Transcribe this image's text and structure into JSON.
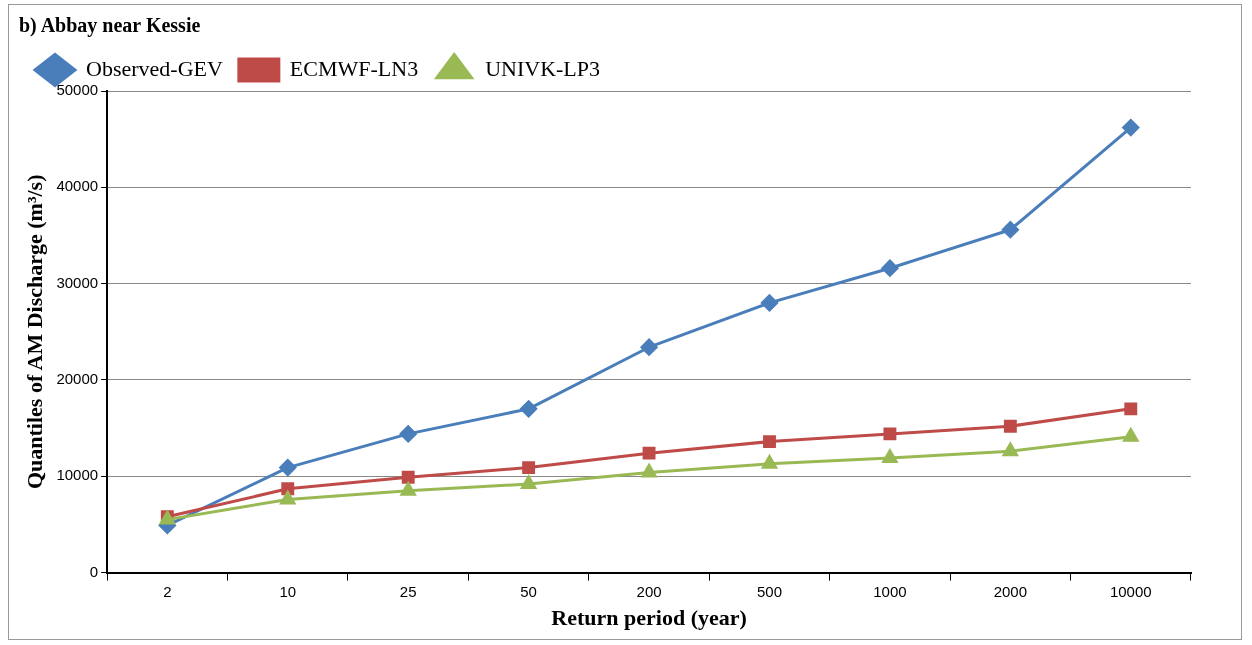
{
  "chart_data": {
    "type": "line",
    "title": "b) Abbay near Kessie",
    "xlabel": "Return period (year)",
    "ylabel": "Quantiles of AM Discharge (m³/s)",
    "categories": [
      "2",
      "10",
      "25",
      "50",
      "200",
      "500",
      "1000",
      "2000",
      "10000"
    ],
    "series": [
      {
        "name": "Observed-GEV",
        "color": "#4a7ebb",
        "marker": "diamond",
        "values": [
          4900,
          10900,
          14400,
          17000,
          23400,
          28000,
          31600,
          35600,
          46200
        ]
      },
      {
        "name": "ECMWF-LN3",
        "color": "#be4b48",
        "marker": "square",
        "values": [
          5800,
          8700,
          9900,
          10900,
          12400,
          13600,
          14400,
          15200,
          17000
        ]
      },
      {
        "name": "UNIVK-LP3",
        "color": "#98b954",
        "marker": "triangle",
        "values": [
          5500,
          7600,
          8500,
          9200,
          10400,
          11300,
          11900,
          12600,
          14100
        ]
      }
    ],
    "ylim": [
      0,
      50000
    ],
    "yticks": [
      0,
      10000,
      20000,
      30000,
      40000,
      50000
    ],
    "grid": "y",
    "legend": "top left",
    "line_style": "solid"
  }
}
